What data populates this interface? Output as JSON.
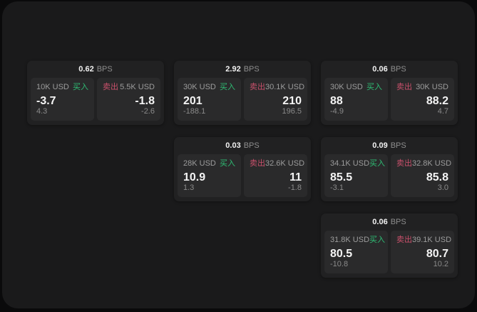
{
  "theme": {
    "page_background": "#0a0a0b",
    "window_background": "#1a1a1b",
    "card_background": "#212122",
    "panel_background": "#2a2a2b",
    "primary_text": "#f2f2f2",
    "secondary_text": "#8e8e8e",
    "buy_color": "#2ebd74",
    "sell_color": "#c9506b"
  },
  "labels": {
    "bps": "BPS",
    "buy": "买入",
    "sell": "卖出"
  },
  "cards": [
    {
      "row": 1,
      "col": 1,
      "bps": "0.62",
      "buy": {
        "size": "10K USD",
        "value": "-3.7",
        "sub": "4.3"
      },
      "sell": {
        "size": "5.5K USD",
        "value": "-1.8",
        "sub": "-2.6"
      }
    },
    {
      "row": 1,
      "col": 2,
      "bps": "2.92",
      "buy": {
        "size": "30K USD",
        "value": "201",
        "sub": "-188.1"
      },
      "sell": {
        "size": "30.1K USD",
        "value": "210",
        "sub": "196.5"
      }
    },
    {
      "row": 1,
      "col": 3,
      "bps": "0.06",
      "buy": {
        "size": "30K USD",
        "value": "88",
        "sub": "-4.9"
      },
      "sell": {
        "size": "30K USD",
        "value": "88.2",
        "sub": "4.7"
      }
    },
    {
      "row": 2,
      "col": 2,
      "bps": "0.03",
      "buy": {
        "size": "28K USD",
        "value": "10.9",
        "sub": "1.3"
      },
      "sell": {
        "size": "32.6K USD",
        "value": "11",
        "sub": "-1.8"
      }
    },
    {
      "row": 2,
      "col": 3,
      "bps": "0.09",
      "buy": {
        "size": "34.1K USD",
        "value": "85.5",
        "sub": "-3.1"
      },
      "sell": {
        "size": "32.8K USD",
        "value": "85.8",
        "sub": "3.0"
      }
    },
    {
      "row": 3,
      "col": 3,
      "bps": "0.06",
      "buy": {
        "size": "31.8K USD",
        "value": "80.5",
        "sub": "-10.8"
      },
      "sell": {
        "size": "39.1K USD",
        "value": "80.7",
        "sub": "10.2"
      }
    }
  ]
}
